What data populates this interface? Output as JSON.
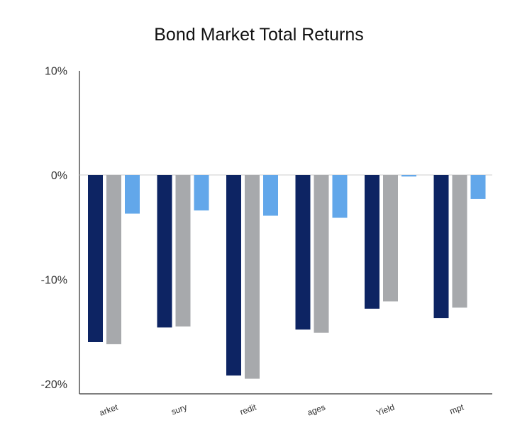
{
  "chart_data": {
    "type": "bar",
    "title": "Bond Market Total Returns",
    "xlabel": "",
    "ylabel": "",
    "categories": [
      "arket",
      "sury",
      "redit",
      "ages",
      "Yield",
      "mpt"
    ],
    "series": [
      {
        "color": "#0d2463",
        "values": [
          -16.0,
          -14.6,
          -19.2,
          -14.8,
          -12.8,
          -13.7
        ]
      },
      {
        "color": "#a7a9ac",
        "values": [
          -16.2,
          -14.5,
          -19.5,
          -15.1,
          -12.1,
          -12.7
        ]
      },
      {
        "color": "#62a7ea",
        "values": [
          -3.7,
          -3.4,
          -3.9,
          -4.1,
          -0.15,
          -2.3
        ]
      }
    ],
    "yticks": [
      {
        "value": 10,
        "label": "10%"
      },
      {
        "value": 0,
        "label": "0%"
      },
      {
        "value": -10,
        "label": "-10%"
      },
      {
        "value": -20,
        "label": "-20%"
      }
    ],
    "ylim": [
      -21,
      10
    ],
    "grid": false,
    "legend": "none"
  }
}
